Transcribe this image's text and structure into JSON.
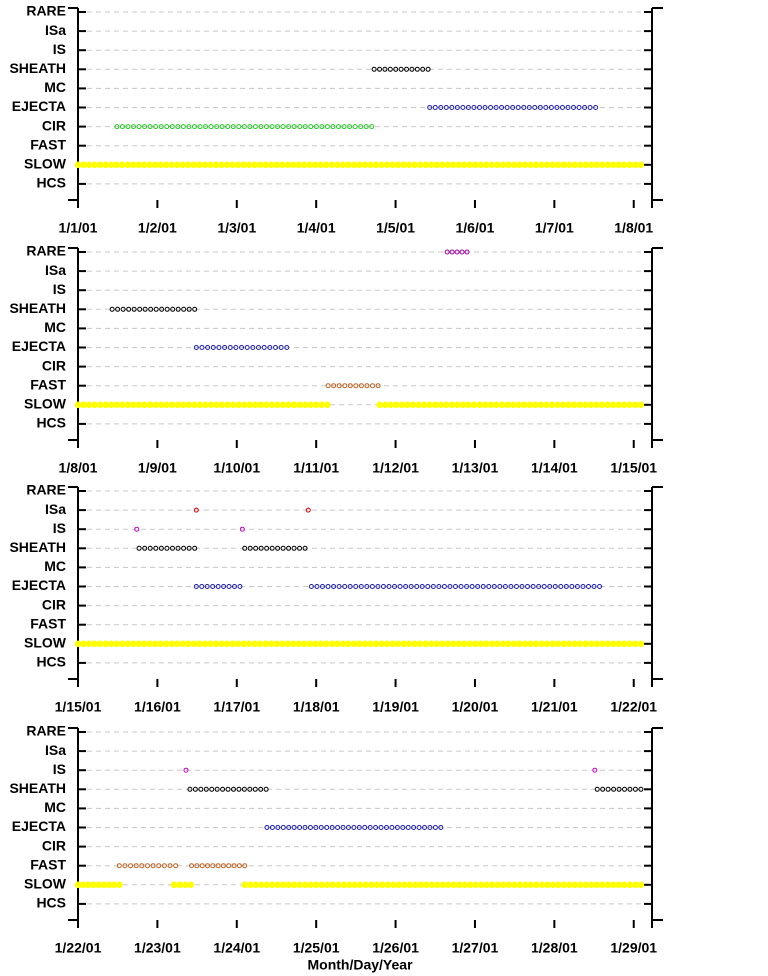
{
  "chart_data": [
    {
      "type": "timeline",
      "xlim": [
        1,
        8.23
      ],
      "xticks": [
        {
          "value": 1,
          "label": "1/1/01"
        },
        {
          "value": 2,
          "label": "1/2/01"
        },
        {
          "value": 3,
          "label": "1/3/01"
        },
        {
          "value": 4,
          "label": "1/4/01"
        },
        {
          "value": 5,
          "label": "1/5/01"
        },
        {
          "value": 6,
          "label": "1/6/01"
        },
        {
          "value": 7,
          "label": "1/7/01"
        },
        {
          "value": 8,
          "label": "1/8/01"
        }
      ],
      "rows": [
        {
          "label": "RARE",
          "segments": []
        },
        {
          "label": "ISa",
          "segments": []
        },
        {
          "label": "IS",
          "segments": []
        },
        {
          "label": "SHEATH",
          "color": "#000000",
          "segments": [
            [
              4.73,
              5.41
            ]
          ]
        },
        {
          "label": "MC",
          "segments": []
        },
        {
          "label": "EJECTA",
          "color": "#1c1cb0",
          "segments": [
            [
              5.43,
              7.52
            ]
          ]
        },
        {
          "label": "CIR",
          "color": "#22cc22",
          "segments": [
            [
              1.49,
              4.7
            ]
          ]
        },
        {
          "label": "FAST",
          "segments": []
        },
        {
          "label": "SLOW",
          "color": "#ffff00",
          "segments": [
            [
              1.0,
              8.09
            ]
          ]
        },
        {
          "label": "HCS",
          "segments": []
        }
      ]
    },
    {
      "type": "timeline",
      "xlim": [
        8,
        15.23
      ],
      "xticks": [
        {
          "value": 8,
          "label": "1/8/01"
        },
        {
          "value": 9,
          "label": "1/9/01"
        },
        {
          "value": 10,
          "label": "1/10/01"
        },
        {
          "value": 11,
          "label": "1/11/01"
        },
        {
          "value": 12,
          "label": "1/12/01"
        },
        {
          "value": 13,
          "label": "1/13/01"
        },
        {
          "value": 14,
          "label": "1/14/01"
        },
        {
          "value": 15,
          "label": "1/15/01"
        }
      ],
      "rows": [
        {
          "label": "RARE",
          "color": "#a000a0",
          "segments": [
            [
              12.65,
              12.9
            ]
          ]
        },
        {
          "label": "ISa",
          "segments": []
        },
        {
          "label": "IS",
          "segments": []
        },
        {
          "label": "SHEATH",
          "color": "#000000",
          "segments": [
            [
              8.43,
              9.47
            ]
          ]
        },
        {
          "label": "MC",
          "segments": []
        },
        {
          "label": "EJECTA",
          "color": "#1c1cb0",
          "segments": [
            [
              9.49,
              10.63
            ]
          ]
        },
        {
          "label": "CIR",
          "segments": []
        },
        {
          "label": "FAST",
          "color": "#c06020",
          "segments": [
            [
              11.15,
              11.78
            ]
          ]
        },
        {
          "label": "SLOW",
          "color": "#ffff00",
          "segments": [
            [
              8.0,
              11.14
            ],
            [
              11.8,
              15.09
            ]
          ]
        },
        {
          "label": "HCS",
          "segments": []
        }
      ]
    },
    {
      "type": "timeline",
      "xlim": [
        15,
        22.23
      ],
      "xticks": [
        {
          "value": 15,
          "label": "1/15/01"
        },
        {
          "value": 16,
          "label": "1/16/01"
        },
        {
          "value": 17,
          "label": "1/17/01"
        },
        {
          "value": 18,
          "label": "1/18/01"
        },
        {
          "value": 19,
          "label": "1/19/01"
        },
        {
          "value": 20,
          "label": "1/20/01"
        },
        {
          "value": 21,
          "label": "1/21/01"
        },
        {
          "value": 22,
          "label": "1/22/01"
        }
      ],
      "rows": [
        {
          "label": "RARE",
          "segments": []
        },
        {
          "label": "ISa",
          "color": "#d00000",
          "segments": [
            [
              16.49,
              16.49
            ],
            [
              17.9,
              17.9
            ]
          ]
        },
        {
          "label": "IS",
          "color": "#c000c0",
          "segments": [
            [
              15.74,
              15.74
            ],
            [
              17.07,
              17.07
            ]
          ]
        },
        {
          "label": "SHEATH",
          "color": "#000000",
          "segments": [
            [
              15.77,
              16.47
            ],
            [
              17.1,
              17.86
            ]
          ]
        },
        {
          "label": "MC",
          "segments": []
        },
        {
          "label": "EJECTA",
          "color": "#1c1cb0",
          "segments": [
            [
              16.49,
              17.04
            ],
            [
              17.94,
              21.57
            ]
          ]
        },
        {
          "label": "CIR",
          "segments": []
        },
        {
          "label": "FAST",
          "segments": []
        },
        {
          "label": "SLOW",
          "color": "#ffff00",
          "segments": [
            [
              15.0,
              22.09
            ]
          ]
        },
        {
          "label": "HCS",
          "segments": []
        }
      ]
    },
    {
      "type": "timeline",
      "xlim": [
        22,
        29.23
      ],
      "xlabel": "Month/Day/Year",
      "xticks": [
        {
          "value": 22,
          "label": "1/22/01"
        },
        {
          "value": 23,
          "label": "1/23/01"
        },
        {
          "value": 24,
          "label": "1/24/01"
        },
        {
          "value": 25,
          "label": "1/25/01"
        },
        {
          "value": 26,
          "label": "1/26/01"
        },
        {
          "value": 27,
          "label": "1/27/01"
        },
        {
          "value": 28,
          "label": "1/28/01"
        },
        {
          "value": 29,
          "label": "1/29/01"
        }
      ],
      "rows": [
        {
          "label": "RARE",
          "segments": []
        },
        {
          "label": "ISa",
          "segments": []
        },
        {
          "label": "IS",
          "color": "#c000c0",
          "segments": [
            [
              23.36,
              23.36
            ],
            [
              28.51,
              28.51
            ]
          ]
        },
        {
          "label": "SHEATH",
          "color": "#000000",
          "segments": [
            [
              23.41,
              24.37
            ],
            [
              28.54,
              29.09
            ]
          ]
        },
        {
          "label": "MC",
          "segments": []
        },
        {
          "label": "EJECTA",
          "color": "#1c1cb0",
          "segments": [
            [
              24.38,
              26.57
            ]
          ]
        },
        {
          "label": "CIR",
          "segments": []
        },
        {
          "label": "FAST",
          "color": "#c06020",
          "segments": [
            [
              22.52,
              23.23
            ],
            [
              23.43,
              24.1
            ]
          ]
        },
        {
          "label": "SLOW",
          "color": "#ffff00",
          "segments": [
            [
              22.0,
              22.52
            ],
            [
              23.21,
              23.42
            ],
            [
              24.1,
              29.09
            ]
          ]
        },
        {
          "label": "HCS",
          "segments": []
        }
      ]
    }
  ]
}
